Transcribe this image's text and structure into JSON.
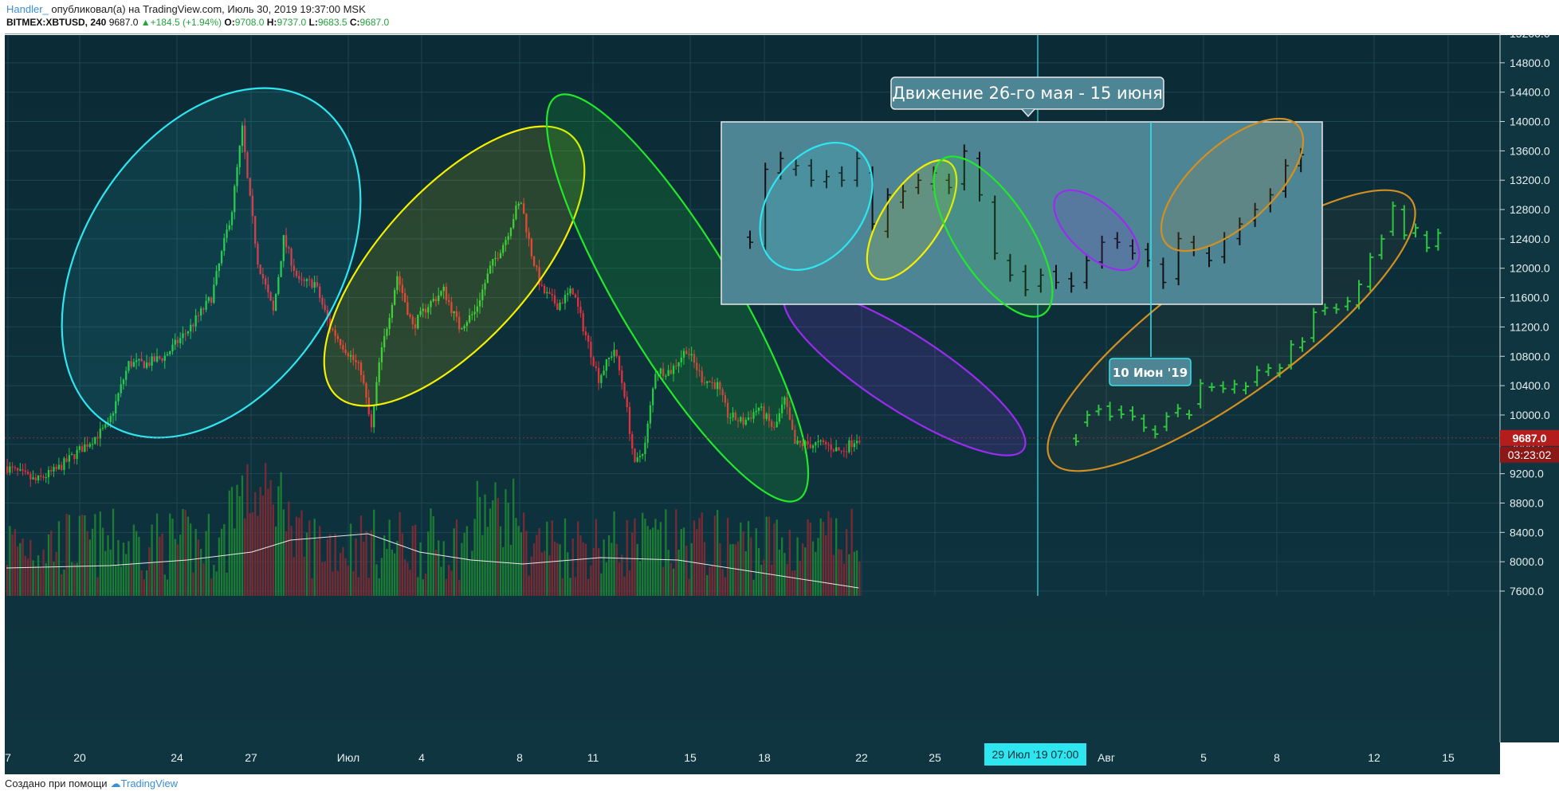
{
  "header": {
    "author": "Handler_",
    "published": "опубликовал(а) на TradingView.com, Июль 30, 2019 19:37:00 MSK",
    "symbol": "BITMEX:XBTUSD, 240",
    "last": "9687.0",
    "change": "▲+184.5 (+1.94%)",
    "o_label": "O:",
    "o": "9708.0",
    "h_label": "H:",
    "h": "9737.0",
    "l_label": "L:",
    "l": "9683.5",
    "c_label": "C:",
    "c": "9687.0"
  },
  "footer": {
    "text": "Создано при помощи",
    "brand": "TradingView"
  },
  "chart_data": {
    "type": "candlestick",
    "ylim": [
      7400,
      15300
    ],
    "y_ticks": [
      7600,
      8000,
      8400,
      8800,
      9200,
      9600,
      10000,
      10400,
      10800,
      11200,
      11600,
      12000,
      12400,
      12800,
      13200,
      13600,
      14000,
      14400,
      14800,
      15200
    ],
    "x_ticks": [
      "7",
      "20",
      "24",
      "27",
      "Июл",
      "4",
      "8",
      "11",
      "15",
      "18",
      "22",
      "25",
      "Авг",
      "5",
      "8",
      "12",
      "15"
    ],
    "price_tag": "9687.0",
    "countdown": "03:23:02",
    "crosshair_label": "29 Июл '19   07:00",
    "inset_title": "Движение 26-го мая - 15 июня",
    "inset_date_label": "10 Июн '19",
    "colors": {
      "up": "#26c940",
      "down": "#e0313f",
      "cyan": "#2ee6f0",
      "yellow": "#f4f000",
      "green": "#22e82a",
      "purple": "#9a2cf0",
      "orange": "#d29022"
    },
    "anchors": [
      [
        0,
        9300
      ],
      [
        12,
        9100
      ],
      [
        20,
        9250
      ],
      [
        30,
        9550
      ],
      [
        40,
        9850
      ],
      [
        48,
        10700
      ],
      [
        55,
        10700
      ],
      [
        62,
        10800
      ],
      [
        72,
        11200
      ],
      [
        80,
        11600
      ],
      [
        88,
        12800
      ],
      [
        92,
        13900
      ],
      [
        94,
        13200
      ],
      [
        98,
        12100
      ],
      [
        104,
        11400
      ],
      [
        108,
        12400
      ],
      [
        114,
        11800
      ],
      [
        120,
        11800
      ],
      [
        126,
        11200
      ],
      [
        134,
        10800
      ],
      [
        138,
        10600
      ],
      [
        142,
        9800
      ],
      [
        145,
        10700
      ],
      [
        152,
        11900
      ],
      [
        158,
        11200
      ],
      [
        164,
        11500
      ],
      [
        170,
        11700
      ],
      [
        176,
        11200
      ],
      [
        182,
        11400
      ],
      [
        188,
        12000
      ],
      [
        194,
        12400
      ],
      [
        198,
        12800
      ],
      [
        200,
        12900
      ],
      [
        204,
        12200
      ],
      [
        208,
        11700
      ],
      [
        214,
        11500
      ],
      [
        220,
        11700
      ],
      [
        224,
        11200
      ],
      [
        230,
        10500
      ],
      [
        236,
        10900
      ],
      [
        240,
        10300
      ],
      [
        244,
        9300
      ],
      [
        248,
        9600
      ],
      [
        252,
        10600
      ],
      [
        258,
        10600
      ],
      [
        264,
        10900
      ],
      [
        270,
        10500
      ],
      [
        276,
        10400
      ],
      [
        280,
        10000
      ],
      [
        286,
        9900
      ],
      [
        292,
        10100
      ],
      [
        298,
        9800
      ],
      [
        302,
        10200
      ],
      [
        306,
        9600
      ],
      [
        312,
        9600
      ],
      [
        318,
        9600
      ],
      [
        324,
        9500
      ],
      [
        330,
        9690
      ]
    ],
    "volume_avg": [
      [
        0,
        7950
      ],
      [
        40,
        7980
      ],
      [
        70,
        8050
      ],
      [
        95,
        8150
      ],
      [
        110,
        8300
      ],
      [
        140,
        8380
      ],
      [
        160,
        8150
      ],
      [
        180,
        8050
      ],
      [
        200,
        8000
      ],
      [
        230,
        8080
      ],
      [
        260,
        8050
      ],
      [
        290,
        7900
      ],
      [
        320,
        7750
      ],
      [
        330,
        7700
      ]
    ],
    "future_bars": [
      [
        9680,
        9640
      ],
      [
        9900,
        10000
      ],
      [
        10050,
        10080
      ],
      [
        10120,
        9980
      ],
      [
        10070,
        10010
      ],
      [
        10060,
        9980
      ],
      [
        9950,
        9830
      ],
      [
        9800,
        9740
      ],
      [
        9840,
        9980
      ],
      [
        10030,
        10090
      ],
      [
        10010,
        10000
      ],
      [
        10150,
        10430
      ],
      [
        10380,
        10380
      ],
      [
        10400,
        10360
      ],
      [
        10350,
        10420
      ],
      [
        10340,
        10390
      ],
      [
        10450,
        10610
      ],
      [
        10590,
        10640
      ],
      [
        10570,
        10640
      ],
      [
        10680,
        10960
      ],
      [
        10920,
        11000
      ],
      [
        11050,
        11400
      ],
      [
        11420,
        11460
      ],
      [
        11460,
        11440
      ],
      [
        11480,
        11550
      ],
      [
        11500,
        11780
      ],
      [
        11750,
        12150
      ],
      [
        12180,
        12400
      ],
      [
        12500,
        12850
      ],
      [
        12800,
        12450
      ],
      [
        12480,
        12550
      ],
      [
        12450,
        12280
      ],
      [
        12300,
        12480
      ]
    ],
    "inset_bars": [
      [
        12720,
        12650
      ],
      [
        12600,
        13650
      ],
      [
        13600,
        13800
      ],
      [
        13650,
        13700
      ],
      [
        13700,
        13500
      ],
      [
        13480,
        13550
      ],
      [
        13600,
        13500
      ],
      [
        13500,
        13800
      ],
      [
        13600,
        12900
      ],
      [
        12800,
        13300
      ],
      [
        13200,
        13350
      ],
      [
        13400,
        13500
      ],
      [
        13450,
        13600
      ],
      [
        13500,
        13400
      ],
      [
        13450,
        13900
      ],
      [
        13800,
        13300
      ],
      [
        13200,
        12500
      ],
      [
        12400,
        12200
      ],
      [
        12250,
        12000
      ],
      [
        12050,
        12200
      ],
      [
        12250,
        12100
      ],
      [
        12150,
        12050
      ],
      [
        12100,
        12400
      ],
      [
        12380,
        12650
      ],
      [
        12700,
        12650
      ],
      [
        12600,
        12500
      ],
      [
        12550,
        12400
      ],
      [
        12350,
        12100
      ],
      [
        12150,
        12700
      ],
      [
        12650,
        12550
      ],
      [
        12500,
        12400
      ],
      [
        12450,
        12700
      ],
      [
        12700,
        12900
      ],
      [
        12950,
        13100
      ],
      [
        13150,
        13300
      ],
      [
        13350,
        13700
      ],
      [
        13700,
        13850
      ]
    ]
  }
}
